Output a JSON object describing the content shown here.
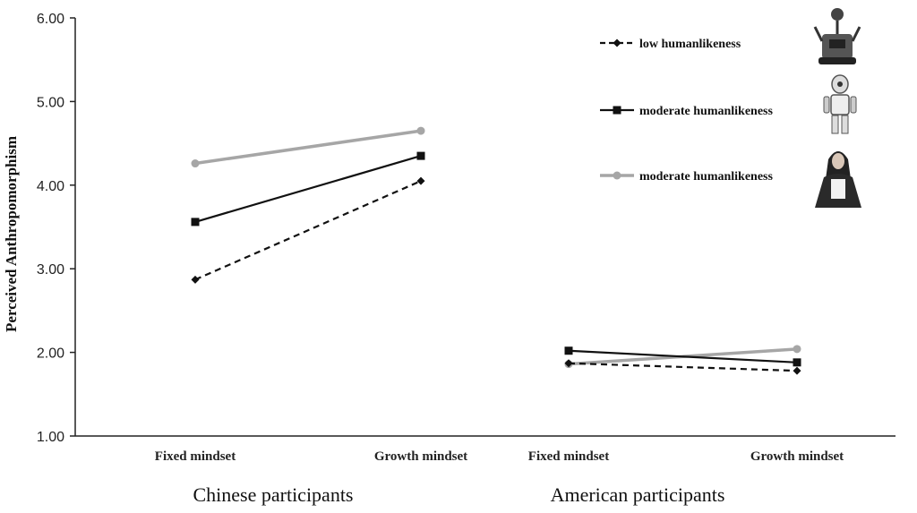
{
  "chart_data": {
    "type": "line",
    "ylabel": "Perceived Anthropomorphism",
    "ylim": [
      1.0,
      6.0
    ],
    "yticks": [
      "1.00",
      "2.00",
      "3.00",
      "4.00",
      "5.00",
      "6.00"
    ],
    "categories": [
      "Fixed mindset",
      "Growth mindset",
      "Fixed mindset",
      "Growth mindset"
    ],
    "groups": [
      "Chinese participants",
      "American participants"
    ],
    "legend_position": "top-right",
    "series": [
      {
        "name": "low humanlikeness",
        "color": "#111111",
        "dash": true,
        "marker": "diamond",
        "values": [
          2.87,
          4.05,
          1.87,
          1.78
        ]
      },
      {
        "name": "moderate humanlikeness",
        "color": "#111111",
        "dash": false,
        "marker": "square",
        "values": [
          3.56,
          4.35,
          2.02,
          1.88
        ]
      },
      {
        "name": "moderate humanlikeness",
        "color": "#a6a6a6",
        "dash": false,
        "marker": "circle",
        "values": [
          4.26,
          4.65,
          1.86,
          2.04
        ]
      }
    ],
    "legend_icons": [
      "robot-tank-icon",
      "humanoid-robot-icon",
      "human-figure-icon"
    ]
  }
}
